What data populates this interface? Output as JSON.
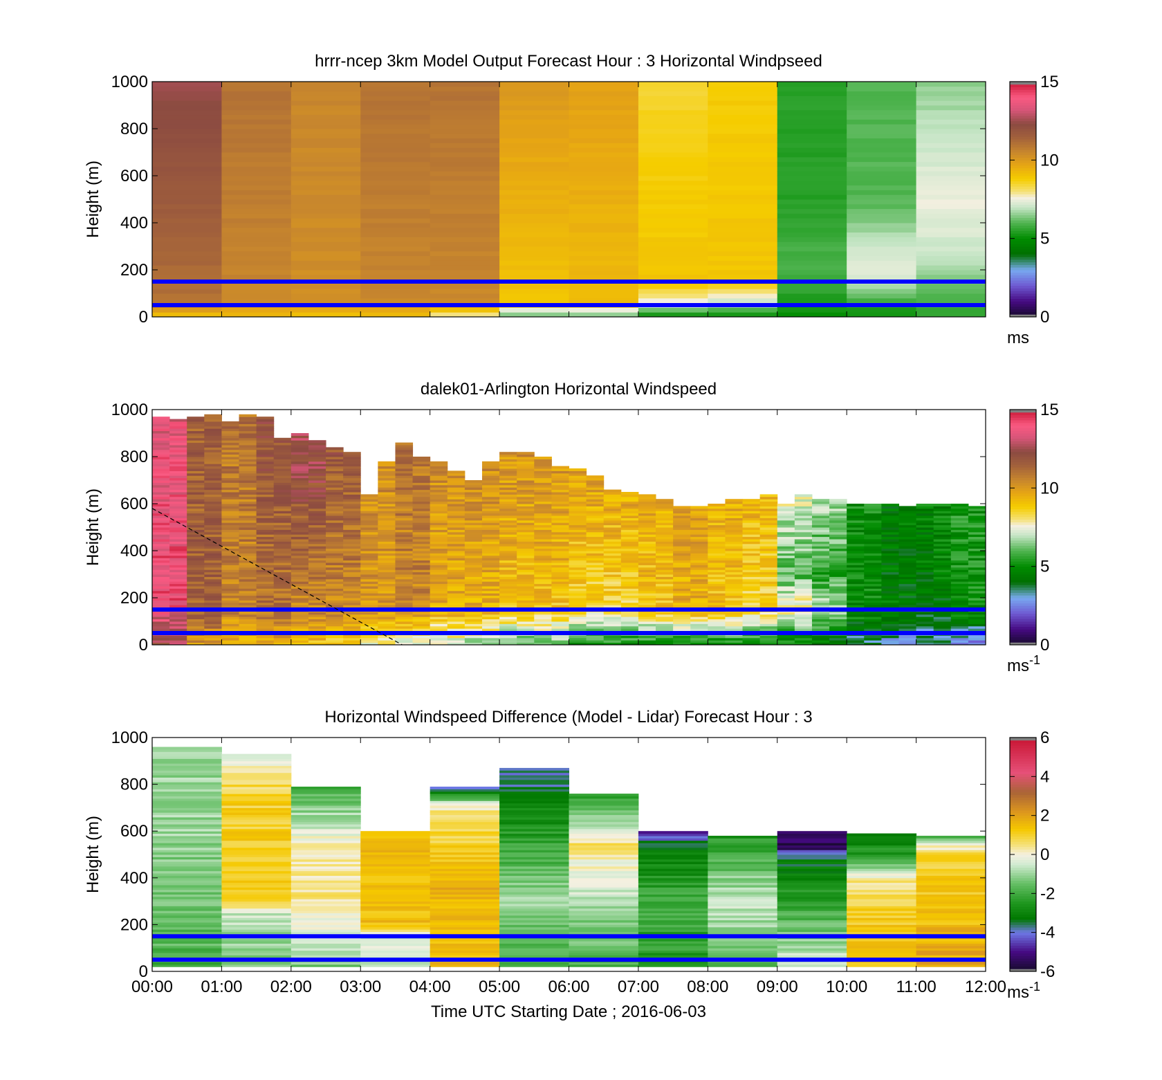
{
  "figure": {
    "xlabel": "Time UTC  Starting Date ; 2016-06-03",
    "x_tick_labels": [
      "00:00",
      "01:00",
      "02:00",
      "03:00",
      "04:00",
      "05:00",
      "06:00",
      "07:00",
      "08:00",
      "09:00",
      "10:00",
      "11:00",
      "12:00"
    ]
  },
  "chart_data": [
    {
      "type": "heatmap",
      "title": "hrrr-ncep 3km Model Output   Forecast Hour : 3 Horizontal Windpseed",
      "ylabel": "Height (m)",
      "xlim": [
        0,
        12
      ],
      "ylim": [
        0,
        1000
      ],
      "y_ticks": [
        0,
        200,
        400,
        600,
        800,
        1000
      ],
      "colorbar": {
        "ticks": [
          0,
          5,
          10,
          15
        ],
        "range": [
          0,
          15
        ],
        "unit_label": "ms",
        "unit_sup": "",
        "colormap": "windspeed"
      },
      "reference_lines_m": [
        50,
        150
      ],
      "columns_hourly_windspeed_ms": [
        {
          "hour": 0,
          "profile": [
            [
              0,
              9
            ],
            [
              60,
              11
            ],
            [
              1000,
              12.5
            ]
          ]
        },
        {
          "hour": 1,
          "profile": [
            [
              0,
              9
            ],
            [
              60,
              10.5
            ],
            [
              1000,
              11
            ]
          ]
        },
        {
          "hour": 2,
          "profile": [
            [
              0,
              9
            ],
            [
              60,
              10.3
            ],
            [
              1000,
              10.5
            ]
          ]
        },
        {
          "hour": 3,
          "profile": [
            [
              0,
              9
            ],
            [
              60,
              10.5
            ],
            [
              1000,
              11
            ]
          ]
        },
        {
          "hour": 4,
          "profile": [
            [
              0,
              7.5
            ],
            [
              60,
              10.5
            ],
            [
              1000,
              11
            ]
          ]
        },
        {
          "hour": 5,
          "profile": [
            [
              0,
              6
            ],
            [
              60,
              9
            ],
            [
              1000,
              10
            ]
          ]
        },
        {
          "hour": 6,
          "profile": [
            [
              0,
              6
            ],
            [
              60,
              9.2
            ],
            [
              1000,
              9.8
            ]
          ]
        },
        {
          "hour": 7,
          "profile": [
            [
              0,
              5
            ],
            [
              60,
              7.5
            ],
            [
              150,
              9
            ],
            [
              1000,
              8.5
            ]
          ]
        },
        {
          "hour": 8,
          "profile": [
            [
              0,
              5
            ],
            [
              60,
              7
            ],
            [
              150,
              9
            ],
            [
              1000,
              8.8
            ]
          ]
        },
        {
          "hour": 9,
          "profile": [
            [
              0,
              5
            ],
            [
              200,
              6
            ],
            [
              500,
              5.5
            ],
            [
              1000,
              5.5
            ]
          ]
        },
        {
          "hour": 10,
          "profile": [
            [
              0,
              5
            ],
            [
              200,
              7.5
            ],
            [
              500,
              6
            ],
            [
              1000,
              6
            ]
          ]
        },
        {
          "hour": 11,
          "profile": [
            [
              0,
              5.5
            ],
            [
              250,
              7
            ],
            [
              500,
              7.5
            ],
            [
              1000,
              6.5
            ]
          ]
        }
      ]
    },
    {
      "type": "heatmap",
      "title": "dalek01-Arlington  Horizontal Windspeed",
      "ylabel": "Height (m)",
      "xlim": [
        0,
        12
      ],
      "ylim": [
        0,
        1000
      ],
      "y_ticks": [
        0,
        200,
        400,
        600,
        800,
        1000
      ],
      "colorbar": {
        "ticks": [
          0,
          5,
          10,
          15
        ],
        "range": [
          0,
          15
        ],
        "unit_label": "ms",
        "unit_sup": "-1",
        "colormap": "windspeed"
      },
      "reference_lines_m": [
        50,
        150
      ],
      "dashed_line": {
        "x": [
          0,
          3.6
        ],
        "y": [
          580,
          0
        ]
      },
      "data_top_m_per_quarter_hour": [
        970,
        960,
        970,
        980,
        950,
        980,
        970,
        880,
        900,
        870,
        840,
        820,
        640,
        780,
        860,
        800,
        780,
        740,
        700,
        780,
        820,
        820,
        800,
        760,
        750,
        720,
        660,
        650,
        640,
        620,
        590,
        590,
        600,
        620,
        620,
        640,
        600,
        640,
        620,
        620,
        600,
        600,
        600,
        590,
        600,
        600,
        600,
        590
      ],
      "windspeed_ms_by_half_hour": [
        [
          [
            0,
            12.5
          ],
          [
            200,
            14
          ],
          [
            1000,
            13.5
          ]
        ],
        [
          [
            0,
            10
          ],
          [
            150,
            11.5
          ],
          [
            1000,
            11.5
          ]
        ],
        [
          [
            0,
            9.5
          ],
          [
            150,
            10.5
          ],
          [
            1000,
            11
          ]
        ],
        [
          [
            0,
            9.5
          ],
          [
            150,
            11
          ],
          [
            1000,
            12
          ]
        ],
        [
          [
            0,
            9
          ],
          [
            150,
            10.5
          ],
          [
            1000,
            13
          ]
        ],
        [
          [
            0,
            8.5
          ],
          [
            150,
            10.5
          ],
          [
            1000,
            12
          ]
        ],
        [
          [
            0,
            7.5
          ],
          [
            150,
            10
          ],
          [
            1000,
            10.5
          ]
        ],
        [
          [
            0,
            7
          ],
          [
            150,
            10.5
          ],
          [
            1000,
            11
          ]
        ],
        [
          [
            0,
            7
          ],
          [
            150,
            9.5
          ],
          [
            1000,
            10.5
          ]
        ],
        [
          [
            0,
            6.5
          ],
          [
            150,
            9.5
          ],
          [
            1000,
            10.5
          ]
        ],
        [
          [
            0,
            6
          ],
          [
            150,
            9
          ],
          [
            1000,
            10.5
          ]
        ],
        [
          [
            0,
            6
          ],
          [
            150,
            9
          ],
          [
            1000,
            10.5
          ]
        ],
        [
          [
            0,
            5
          ],
          [
            150,
            8.5
          ],
          [
            1000,
            10.5
          ]
        ],
        [
          [
            0,
            5
          ],
          [
            150,
            8.5
          ],
          [
            600,
            9.5
          ],
          [
            1000,
            11
          ]
        ],
        [
          [
            0,
            5
          ],
          [
            150,
            9
          ],
          [
            1000,
            10
          ]
        ],
        [
          [
            0,
            4.5
          ],
          [
            150,
            9.5
          ],
          [
            1000,
            10
          ]
        ],
        [
          [
            0,
            5
          ],
          [
            150,
            9
          ],
          [
            1000,
            10
          ]
        ],
        [
          [
            0,
            5
          ],
          [
            150,
            8.5
          ],
          [
            1000,
            10
          ]
        ],
        [
          [
            0,
            4.5
          ],
          [
            150,
            8
          ],
          [
            300,
            6
          ],
          [
            1000,
            9
          ]
        ],
        [
          [
            0,
            4
          ],
          [
            150,
            7
          ],
          [
            300,
            5.5
          ],
          [
            1000,
            8.5
          ]
        ],
        [
          [
            0,
            3.5
          ],
          [
            150,
            5
          ],
          [
            1000,
            5
          ]
        ],
        [
          [
            0,
            3
          ],
          [
            150,
            4.5
          ],
          [
            1000,
            4.5
          ]
        ],
        [
          [
            0,
            3
          ],
          [
            150,
            4.5
          ],
          [
            1000,
            5
          ]
        ],
        [
          [
            0,
            2.5
          ],
          [
            150,
            5
          ],
          [
            1000,
            5.5
          ]
        ]
      ]
    },
    {
      "type": "heatmap",
      "title": "Horizontal Windspeed Difference (Model - Lidar) Forecast Hour : 3",
      "ylabel": "Height (m)",
      "xlim": [
        0,
        12
      ],
      "ylim": [
        0,
        1000
      ],
      "y_ticks": [
        0,
        200,
        400,
        600,
        800,
        1000
      ],
      "colorbar": {
        "ticks": [
          -6,
          -4,
          -2,
          0,
          2,
          4,
          6
        ],
        "range": [
          -6,
          6
        ],
        "unit_label": "ms",
        "unit_sup": "-1",
        "colormap": "difference"
      },
      "reference_lines_m": [
        50,
        150
      ],
      "columns_hourly_difference_ms": [
        {
          "hour": 0,
          "top": 960,
          "profile": [
            [
              0,
              -2
            ],
            [
              200,
              -1.5
            ],
            [
              600,
              -1
            ],
            [
              1000,
              -1
            ]
          ]
        },
        {
          "hour": 1,
          "top": 930,
          "profile": [
            [
              0,
              -1.5
            ],
            [
              250,
              -0.5
            ],
            [
              300,
              1.2
            ],
            [
              750,
              1
            ],
            [
              1000,
              -0.5
            ]
          ]
        },
        {
          "hour": 2,
          "top": 790,
          "profile": [
            [
              0,
              -1.5
            ],
            [
              300,
              0.5
            ],
            [
              550,
              0.2
            ],
            [
              650,
              -0.8
            ],
            [
              800,
              -2
            ]
          ]
        },
        {
          "hour": 3,
          "top": 600,
          "profile": [
            [
              0,
              -0.5
            ],
            [
              150,
              -0.3
            ],
            [
              200,
              1.5
            ],
            [
              600,
              1.5
            ]
          ]
        },
        {
          "hour": 4,
          "top": 790,
          "profile": [
            [
              0,
              1.5
            ],
            [
              400,
              1.8
            ],
            [
              700,
              0.3
            ],
            [
              800,
              -4.5
            ]
          ]
        },
        {
          "hour": 5,
          "top": 870,
          "profile": [
            [
              0,
              -2
            ],
            [
              300,
              -1
            ],
            [
              700,
              -3
            ],
            [
              870,
              -4
            ]
          ]
        },
        {
          "hour": 6,
          "top": 760,
          "profile": [
            [
              0,
              -2
            ],
            [
              300,
              -0.8
            ],
            [
              550,
              0.5
            ],
            [
              760,
              -2.5
            ]
          ]
        },
        {
          "hour": 7,
          "top": 600,
          "profile": [
            [
              0,
              -2.5
            ],
            [
              300,
              -2
            ],
            [
              550,
              -3.5
            ],
            [
              600,
              -5
            ]
          ]
        },
        {
          "hour": 8,
          "top": 580,
          "profile": [
            [
              0,
              -2
            ],
            [
              300,
              -0.5
            ],
            [
              580,
              -2.5
            ]
          ]
        },
        {
          "hour": 9,
          "top": 600,
          "profile": [
            [
              0,
              -0.3
            ],
            [
              200,
              -1.5
            ],
            [
              400,
              -3
            ],
            [
              500,
              -3.5
            ],
            [
              530,
              -5.5
            ],
            [
              600,
              -5.5
            ]
          ]
        },
        {
          "hour": 10,
          "top": 590,
          "profile": [
            [
              0,
              1.5
            ],
            [
              200,
              1.2
            ],
            [
              380,
              0.5
            ],
            [
              500,
              -2.5
            ],
            [
              590,
              -3
            ]
          ]
        },
        {
          "hour": 11,
          "top": 580,
          "profile": [
            [
              0,
              2
            ],
            [
              200,
              1.5
            ],
            [
              500,
              1
            ],
            [
              540,
              0
            ],
            [
              580,
              -2.5
            ]
          ]
        }
      ]
    }
  ]
}
